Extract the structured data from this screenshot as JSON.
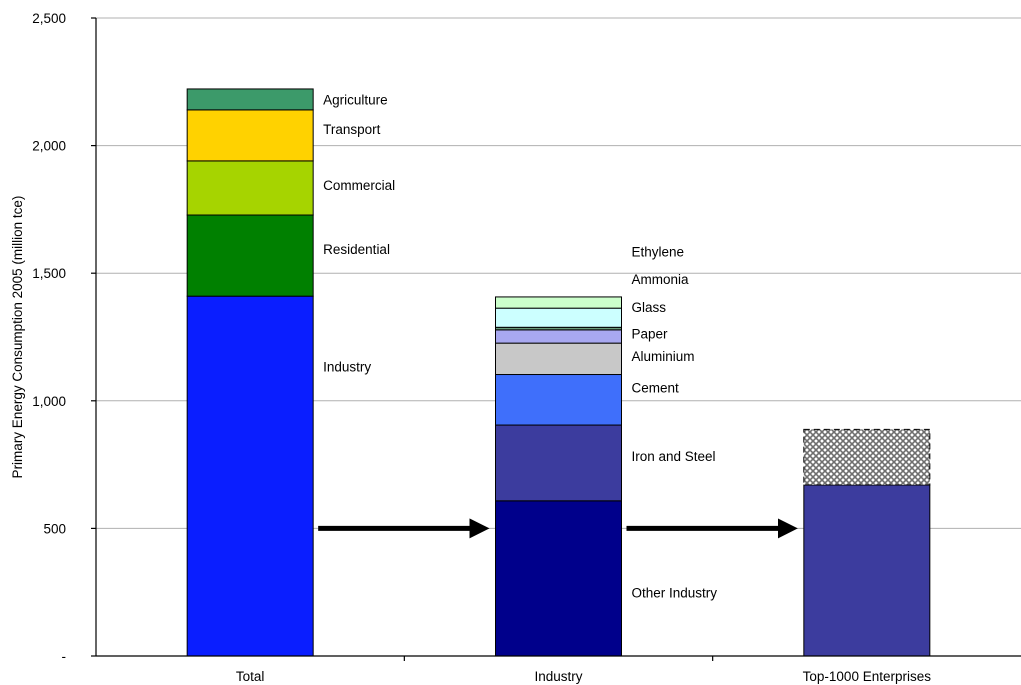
{
  "chart_data": {
    "type": "bar",
    "stacked": true,
    "title": "",
    "xlabel": "",
    "ylabel": "Primary Energy Consumption 2005 (million tce)",
    "ylim": [
      0,
      2500
    ],
    "grid": true,
    "y_ticks": [
      {
        "value": 0,
        "label": "-"
      },
      {
        "value": 500,
        "label": "500"
      },
      {
        "value": 1000,
        "label": "1,000"
      },
      {
        "value": 1500,
        "label": "1,500"
      },
      {
        "value": 2000,
        "label": "2,000"
      },
      {
        "value": 2500,
        "label": "2,500"
      }
    ],
    "categories": [
      "Total",
      "Industry",
      "Top-1000 Enterprises"
    ],
    "bars": [
      {
        "category": "Total",
        "segments": [
          {
            "name": "Industry",
            "value": 1410,
            "color": "#0a1eff"
          },
          {
            "name": "Residential",
            "value": 318,
            "color": "#008000"
          },
          {
            "name": "Commercial",
            "value": 212,
            "color": "#a6d400"
          },
          {
            "name": "Transport",
            "value": 200,
            "color": "#ffd200"
          },
          {
            "name": "Agriculture",
            "value": 82,
            "color": "#3c9a6a"
          }
        ]
      },
      {
        "category": "Industry",
        "segments": [
          {
            "name": "Other Industry",
            "value": 608,
            "color": "#00008b"
          },
          {
            "name": "Iron and Steel",
            "value": 297,
            "color": "#3c3c9e"
          },
          {
            "name": "Cement",
            "value": 198,
            "color": "#3f6ffb"
          },
          {
            "name": "Aluminium",
            "value": 123,
            "color": "#c8c8c8"
          },
          {
            "name": "Paper",
            "value": 52,
            "color": "#a8a8f0"
          },
          {
            "name": "Ammonia",
            "value": 10,
            "color": "#6a9a7a"
          },
          {
            "name": "Glass",
            "value": 75,
            "color": "#ccffff"
          },
          {
            "name": "Ethylene",
            "value": 44,
            "color": "#ccffcc"
          }
        ]
      },
      {
        "category": "Top-1000 Enterprises",
        "segments": [
          {
            "name": "",
            "value": 670,
            "color": "#3c3c9e"
          },
          {
            "name": "",
            "value": 218,
            "color": "pattern",
            "dashed": true
          }
        ]
      }
    ],
    "labels": [
      {
        "bar": "Total",
        "text": "Agriculture",
        "value": 2181
      },
      {
        "bar": "Total",
        "text": "Transport",
        "value": 2065
      },
      {
        "bar": "Total",
        "text": "Commercial",
        "value": 1845
      },
      {
        "bar": "Total",
        "text": "Residential",
        "value": 1595
      },
      {
        "bar": "Total",
        "text": "Industry",
        "value": 1135
      },
      {
        "bar": "Industry",
        "text": "Ethylene",
        "value": 1585
      },
      {
        "bar": "Industry",
        "text": "Ammonia",
        "value": 1477
      },
      {
        "bar": "Industry",
        "text": "Glass",
        "value": 1367
      },
      {
        "bar": "Industry",
        "text": "Paper",
        "value": 1263
      },
      {
        "bar": "Industry",
        "text": "Aluminium",
        "value": 1175
      },
      {
        "bar": "Industry",
        "text": "Cement",
        "value": 1052
      },
      {
        "bar": "Industry",
        "text": "Iron and Steel",
        "value": 784
      },
      {
        "bar": "Industry",
        "text": "Other Industry",
        "value": 248
      }
    ],
    "arrows": [
      {
        "from": "Total",
        "to": "Industry",
        "value": 500
      },
      {
        "from": "Industry",
        "to": "Top-1000 Enterprises",
        "value": 500
      }
    ]
  }
}
